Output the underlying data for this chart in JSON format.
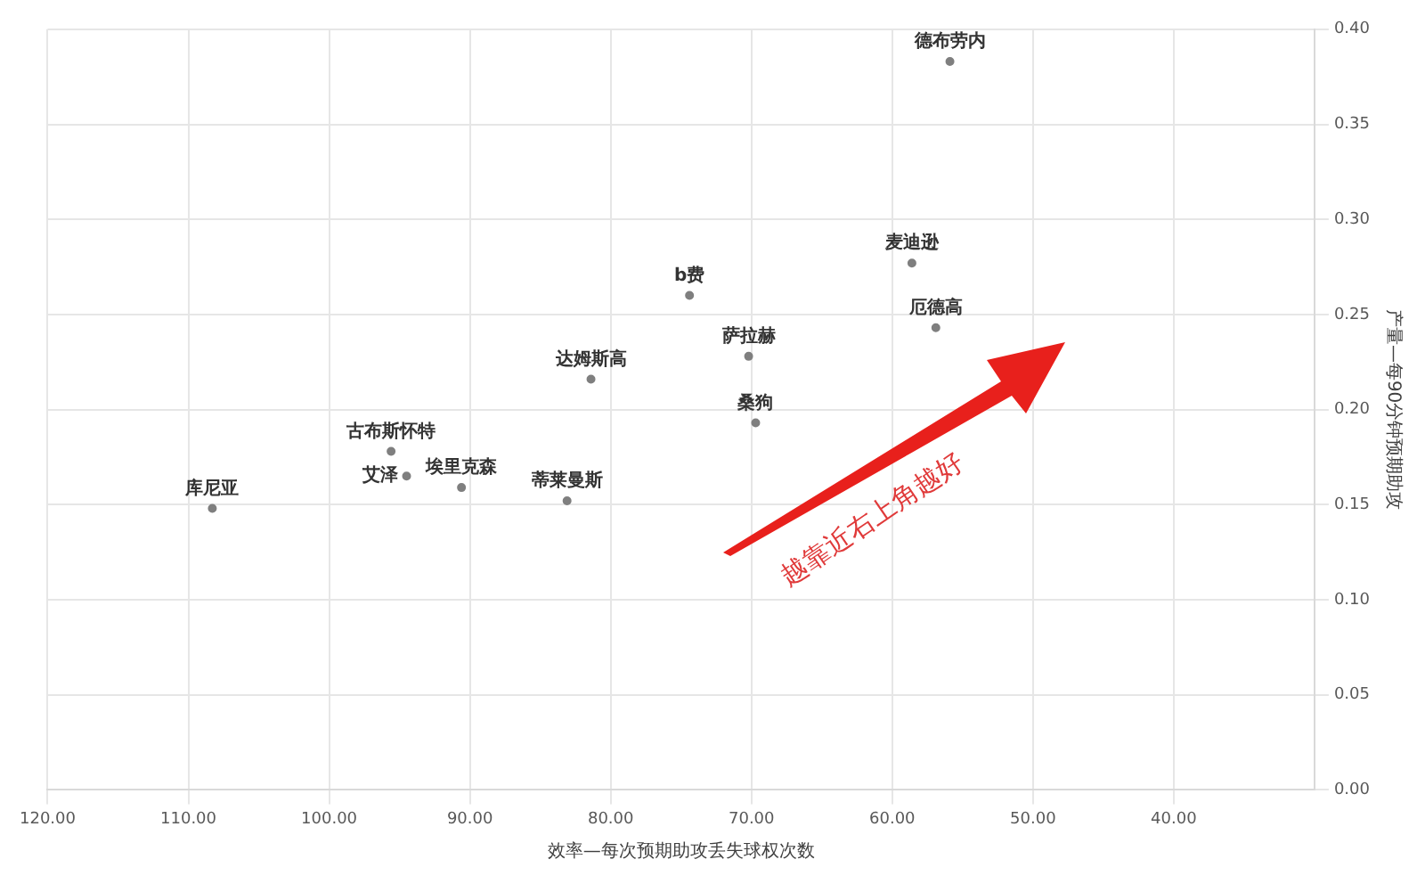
{
  "chart_data": {
    "type": "scatter",
    "xlabel": "效率—每次预期助攻丢失球权次数",
    "ylabel": "产量—每90分钟预期助攻",
    "annotations": [
      "越靠近右上角越好"
    ],
    "series": [
      {
        "name": "德布劳内",
        "color": "#7f7f7f",
        "x": [
          55.9
        ],
        "values": [
          0.383
        ]
      },
      {
        "name": "麦迪逊",
        "color": "#7f7f7f",
        "x": [
          58.6
        ],
        "values": [
          0.277
        ]
      },
      {
        "name": "厄德高",
        "color": "#7f7f7f",
        "x": [
          56.9
        ],
        "values": [
          0.243
        ]
      },
      {
        "name": "b费",
        "color": "#7f7f7f",
        "x": [
          74.4
        ],
        "values": [
          0.26
        ]
      },
      {
        "name": "萨拉赫",
        "color": "#7f7f7f",
        "x": [
          70.2
        ],
        "values": [
          0.228
        ]
      },
      {
        "name": "达姆斯高",
        "color": "#7f7f7f",
        "x": [
          81.4
        ],
        "values": [
          0.216
        ]
      },
      {
        "name": "桑狗",
        "color": "#7f7f7f",
        "x": [
          69.7
        ],
        "values": [
          0.193
        ]
      },
      {
        "name": "古布斯怀特",
        "color": "#7f7f7f",
        "x": [
          95.6
        ],
        "values": [
          0.178
        ]
      },
      {
        "name": "艾泽",
        "color": "#7f7f7f",
        "x": [
          94.5
        ],
        "values": [
          0.165
        ]
      },
      {
        "name": "埃里克森",
        "color": "#7f7f7f",
        "x": [
          90.6
        ],
        "values": [
          0.159
        ]
      },
      {
        "name": "蒂莱曼斯",
        "color": "#7f7f7f",
        "x": [
          83.1
        ],
        "values": [
          0.152
        ]
      },
      {
        "name": "库尼亚",
        "color": "#7f7f7f",
        "x": [
          108.3
        ],
        "values": [
          0.148
        ]
      }
    ],
    "xlim": [
      120,
      30
    ],
    "xticks": [
      {
        "value": 120,
        "label": "120.00"
      },
      {
        "value": 110,
        "label": "110.00"
      },
      {
        "value": 100,
        "label": "100.00"
      },
      {
        "value": 90,
        "label": "90.00"
      },
      {
        "value": 80,
        "label": "80.00"
      },
      {
        "value": 70,
        "label": "70.00"
      },
      {
        "value": 60,
        "label": "60.00"
      },
      {
        "value": 50,
        "label": "50.00"
      },
      {
        "value": 40,
        "label": "40.00"
      }
    ],
    "ylim": [
      0,
      0.4
    ],
    "yticks": [
      {
        "value": 0,
        "label": "0.00"
      },
      {
        "value": 0.05,
        "label": "0.05"
      },
      {
        "value": 0.1,
        "label": "0.10"
      },
      {
        "value": 0.15,
        "label": "0.15"
      },
      {
        "value": 0.2,
        "label": "0.20"
      },
      {
        "value": 0.25,
        "label": "0.25"
      },
      {
        "value": 0.3,
        "label": "0.30"
      },
      {
        "value": 0.35,
        "label": "0.35"
      },
      {
        "value": 0.4,
        "label": "0.40"
      }
    ],
    "grid": true,
    "legend": false,
    "marker": "circle"
  }
}
